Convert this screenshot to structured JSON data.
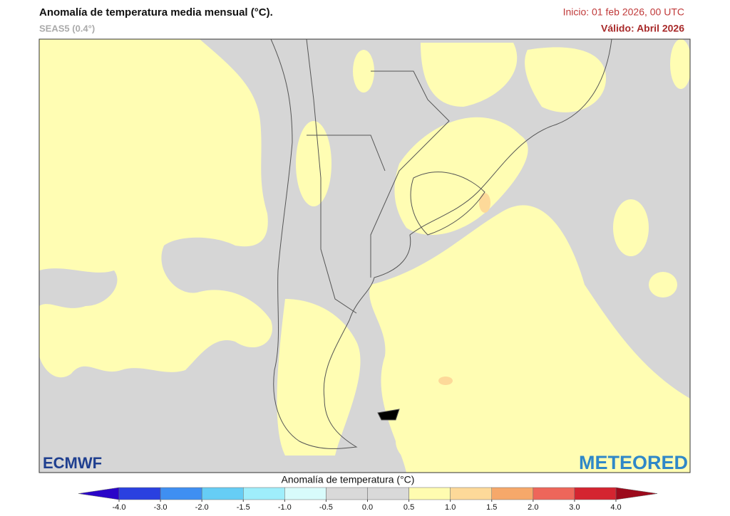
{
  "header": {
    "title": "Anomalía de temperatura media mensual (°C).",
    "subtitle": "SEAS5 (0.4°)",
    "init": "Inicio: 01 feb 2026, 00 UTC",
    "valid": "Válido: Abril 2026"
  },
  "logos": {
    "left": "ECMWF",
    "right": "METEORED"
  },
  "colorbar": {
    "label": "Anomalía de temperatura (°C)",
    "ticks": [
      {
        "value": -4,
        "label": "-4.0"
      },
      {
        "value": -3,
        "label": "-3.0"
      },
      {
        "value": -2,
        "label": "-2.0"
      },
      {
        "value": -1.5,
        "label": "-1.5"
      },
      {
        "value": -1,
        "label": "-1.0"
      },
      {
        "value": -0.5,
        "label": "-0.5"
      },
      {
        "value": 0,
        "label": "0.0"
      },
      {
        "value": 0.5,
        "label": "0.5"
      },
      {
        "value": 1,
        "label": "1.0"
      },
      {
        "value": 1.5,
        "label": "1.5"
      },
      {
        "value": 2,
        "label": "2.0"
      },
      {
        "value": 3,
        "label": "3.0"
      },
      {
        "value": 4,
        "label": "4.0"
      }
    ],
    "under_color": "#2a05c8",
    "colors": [
      "#2a40e0",
      "#3f8ff2",
      "#66cdf5",
      "#9feefb",
      "#d8fbfb",
      "#d9d9d9",
      "#d9d9d9",
      "#fffcb0",
      "#fdd999",
      "#f6a86a",
      "#ee665a",
      "#d42430"
    ],
    "over_color": "#9c0a1c"
  }
}
